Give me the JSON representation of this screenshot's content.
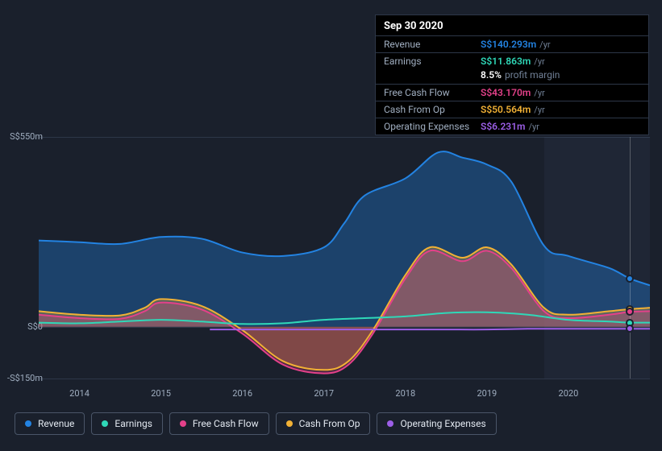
{
  "tooltip": {
    "date": "Sep 30 2020",
    "rows": [
      {
        "label": "Revenue",
        "value": "S$140.293m",
        "suffix": "/yr",
        "color": "#2383e2"
      },
      {
        "label": "Earnings",
        "value": "S$11.863m",
        "suffix": "/yr",
        "color": "#2fd8b8",
        "sub_value": "8.5%",
        "sub_label": "profit margin"
      },
      {
        "label": "Free Cash Flow",
        "value": "S$43.170m",
        "suffix": "/yr",
        "color": "#e4418a"
      },
      {
        "label": "Cash From Op",
        "value": "S$50.564m",
        "suffix": "/yr",
        "color": "#f2b135"
      },
      {
        "label": "Operating Expenses",
        "value": "S$6.231m",
        "suffix": "/yr",
        "color": "#9d5fe8"
      }
    ]
  },
  "chart": {
    "type": "area-line",
    "x_domain": [
      2013.5,
      2021.0
    ],
    "y_domain": [
      -150,
      550
    ],
    "y_ticks": [
      {
        "v": 550,
        "label": "S$550m"
      },
      {
        "v": 0,
        "label": "S$0"
      },
      {
        "v": -150,
        "label": "-S$150m"
      }
    ],
    "x_ticks": [
      2014,
      2015,
      2016,
      2017,
      2018,
      2019,
      2020
    ],
    "background_color": "#1a202c",
    "grid_color": "#2d3748",
    "forecast_start_x": 2019.7,
    "cursor_x": 2020.75,
    "series": [
      {
        "name": "Revenue",
        "color": "#2383e2",
        "fill": "rgba(35,131,226,0.35)",
        "fill_to_zero": true,
        "data": [
          [
            2013.5,
            250
          ],
          [
            2014,
            245
          ],
          [
            2014.5,
            240
          ],
          [
            2015,
            260
          ],
          [
            2015.5,
            255
          ],
          [
            2016,
            215
          ],
          [
            2016.5,
            205
          ],
          [
            2017,
            230
          ],
          [
            2017.25,
            300
          ],
          [
            2017.5,
            380
          ],
          [
            2018,
            430
          ],
          [
            2018.4,
            505
          ],
          [
            2018.7,
            490
          ],
          [
            2019,
            470
          ],
          [
            2019.3,
            420
          ],
          [
            2019.7,
            235
          ],
          [
            2020,
            205
          ],
          [
            2020.5,
            170
          ],
          [
            2020.75,
            140
          ],
          [
            2021,
            120
          ]
        ]
      },
      {
        "name": "Cash From Op",
        "color": "#f2b135",
        "fill": "rgba(242,177,53,0.30)",
        "fill_to_zero": true,
        "data": [
          [
            2013.5,
            45
          ],
          [
            2014,
            35
          ],
          [
            2014.5,
            33
          ],
          [
            2014.8,
            55
          ],
          [
            2015,
            80
          ],
          [
            2015.5,
            60
          ],
          [
            2016,
            -10
          ],
          [
            2016.5,
            -100
          ],
          [
            2017,
            -125
          ],
          [
            2017.3,
            -100
          ],
          [
            2017.6,
            -10
          ],
          [
            2018,
            150
          ],
          [
            2018.3,
            230
          ],
          [
            2018.7,
            200
          ],
          [
            2019,
            230
          ],
          [
            2019.3,
            180
          ],
          [
            2019.7,
            55
          ],
          [
            2020,
            35
          ],
          [
            2020.5,
            45
          ],
          [
            2020.75,
            51
          ],
          [
            2021,
            55
          ]
        ]
      },
      {
        "name": "Free Cash Flow",
        "color": "#e4418a",
        "fill": "rgba(228,65,138,0.28)",
        "fill_to_zero": true,
        "data": [
          [
            2013.5,
            35
          ],
          [
            2014,
            25
          ],
          [
            2014.5,
            23
          ],
          [
            2014.8,
            45
          ],
          [
            2015,
            70
          ],
          [
            2015.5,
            50
          ],
          [
            2016,
            -20
          ],
          [
            2016.5,
            -110
          ],
          [
            2017,
            -135
          ],
          [
            2017.3,
            -110
          ],
          [
            2017.6,
            -20
          ],
          [
            2018,
            140
          ],
          [
            2018.3,
            220
          ],
          [
            2018.7,
            190
          ],
          [
            2019,
            220
          ],
          [
            2019.3,
            170
          ],
          [
            2019.7,
            45
          ],
          [
            2020,
            25
          ],
          [
            2020.5,
            35
          ],
          [
            2020.75,
            43
          ],
          [
            2021,
            45
          ]
        ]
      },
      {
        "name": "Earnings",
        "color": "#2fd8b8",
        "fill": null,
        "data": [
          [
            2013.5,
            12
          ],
          [
            2014,
            10
          ],
          [
            2014.5,
            15
          ],
          [
            2015,
            20
          ],
          [
            2015.5,
            15
          ],
          [
            2016,
            8
          ],
          [
            2016.5,
            10
          ],
          [
            2017,
            20
          ],
          [
            2017.5,
            25
          ],
          [
            2018,
            30
          ],
          [
            2018.5,
            40
          ],
          [
            2019,
            42
          ],
          [
            2019.5,
            35
          ],
          [
            2020,
            20
          ],
          [
            2020.5,
            15
          ],
          [
            2020.75,
            12
          ],
          [
            2021,
            12
          ]
        ]
      },
      {
        "name": "Operating Expenses",
        "color": "#9d5fe8",
        "fill": null,
        "data": [
          [
            2015.6,
            -8
          ],
          [
            2016,
            -8
          ],
          [
            2016.5,
            -8
          ],
          [
            2017,
            -8
          ],
          [
            2017.5,
            -8
          ],
          [
            2018,
            -8
          ],
          [
            2018.5,
            -8
          ],
          [
            2019,
            -8
          ],
          [
            2019.5,
            -6
          ],
          [
            2020,
            -6
          ],
          [
            2020.5,
            -6
          ],
          [
            2020.75,
            -6
          ],
          [
            2021,
            -6
          ]
        ]
      }
    ],
    "legend": [
      {
        "label": "Revenue",
        "color": "#2383e2"
      },
      {
        "label": "Earnings",
        "color": "#2fd8b8"
      },
      {
        "label": "Free Cash Flow",
        "color": "#e4418a"
      },
      {
        "label": "Cash From Op",
        "color": "#f2b135"
      },
      {
        "label": "Operating Expenses",
        "color": "#9d5fe8"
      }
    ],
    "label_fontsize": 11
  }
}
